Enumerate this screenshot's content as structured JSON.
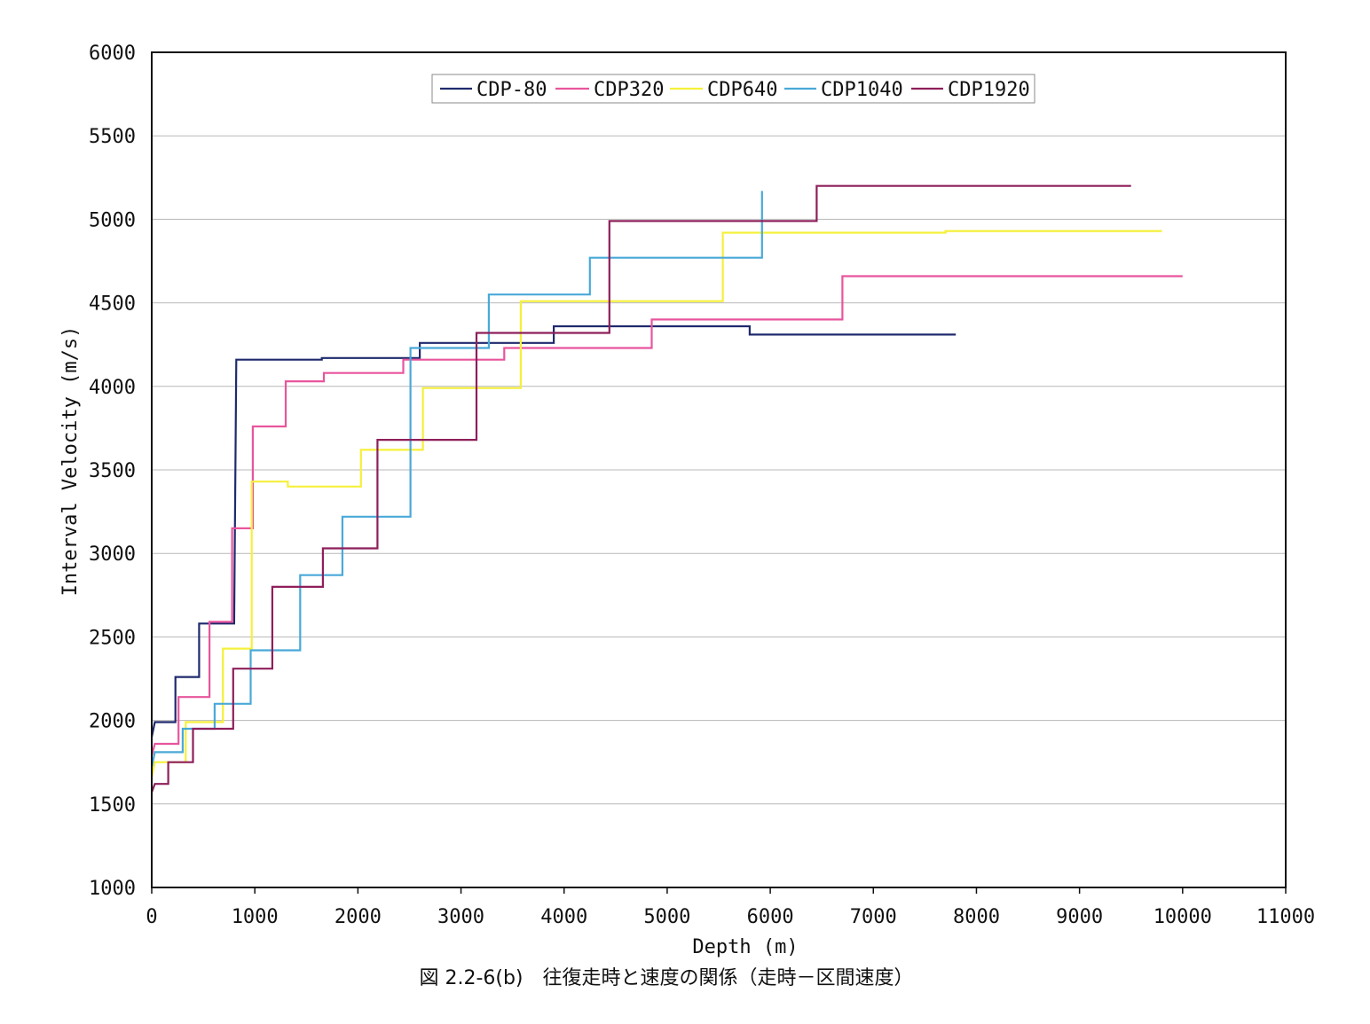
{
  "chart_data": {
    "type": "line",
    "step": true,
    "xlabel": "Depth (m)",
    "ylabel": "Interval Velocity (m/s)",
    "caption": "図 2.2-6(b)　往復走時と速度の関係（走時－区間速度）",
    "xlim": [
      0,
      11000
    ],
    "ylim": [
      1000,
      6000
    ],
    "xticks": [
      0,
      1000,
      2000,
      3000,
      4000,
      5000,
      6000,
      7000,
      8000,
      9000,
      10000,
      11000
    ],
    "yticks": [
      1000,
      1500,
      2000,
      2500,
      3000,
      3500,
      4000,
      4500,
      5000,
      5500,
      6000
    ],
    "grid": "horizontal",
    "legend_position": "top-center",
    "series": [
      {
        "name": "CDP-80",
        "color": "#1f2a6e",
        "points": [
          [
            0,
            1900
          ],
          [
            30,
            1990
          ],
          [
            230,
            1990
          ],
          [
            230,
            2260
          ],
          [
            460,
            2260
          ],
          [
            460,
            2580
          ],
          [
            800,
            2580
          ],
          [
            820,
            4160
          ],
          [
            1650,
            4160
          ],
          [
            1650,
            4170
          ],
          [
            2600,
            4170
          ],
          [
            2600,
            4260
          ],
          [
            3900,
            4260
          ],
          [
            3900,
            4360
          ],
          [
            5800,
            4360
          ],
          [
            5800,
            4310
          ],
          [
            7800,
            4310
          ]
        ]
      },
      {
        "name": "CDP320",
        "color": "#e8559d",
        "points": [
          [
            0,
            1790
          ],
          [
            30,
            1860
          ],
          [
            260,
            1860
          ],
          [
            260,
            2140
          ],
          [
            560,
            2140
          ],
          [
            560,
            2590
          ],
          [
            780,
            2590
          ],
          [
            780,
            3150
          ],
          [
            980,
            3150
          ],
          [
            980,
            3760
          ],
          [
            1300,
            3760
          ],
          [
            1300,
            4030
          ],
          [
            1670,
            4030
          ],
          [
            1670,
            4080
          ],
          [
            2440,
            4080
          ],
          [
            2440,
            4160
          ],
          [
            3420,
            4160
          ],
          [
            3420,
            4230
          ],
          [
            4850,
            4230
          ],
          [
            4850,
            4400
          ],
          [
            6700,
            4400
          ],
          [
            6700,
            4660
          ],
          [
            10000,
            4660
          ]
        ]
      },
      {
        "name": "CDP640",
        "color": "#f5f03a",
        "points": [
          [
            0,
            1660
          ],
          [
            30,
            1750
          ],
          [
            330,
            1750
          ],
          [
            330,
            1990
          ],
          [
            690,
            1990
          ],
          [
            690,
            2430
          ],
          [
            970,
            2430
          ],
          [
            970,
            3430
          ],
          [
            1320,
            3430
          ],
          [
            1320,
            3400
          ],
          [
            2030,
            3400
          ],
          [
            2030,
            3620
          ],
          [
            2630,
            3620
          ],
          [
            2630,
            3990
          ],
          [
            3580,
            3990
          ],
          [
            3580,
            4510
          ],
          [
            5540,
            4510
          ],
          [
            5540,
            4920
          ],
          [
            7700,
            4920
          ],
          [
            7700,
            4930
          ],
          [
            9800,
            4930
          ]
        ]
      },
      {
        "name": "CDP1040",
        "color": "#49a9d8",
        "points": [
          [
            0,
            1720
          ],
          [
            30,
            1810
          ],
          [
            300,
            1810
          ],
          [
            300,
            1950
          ],
          [
            610,
            1950
          ],
          [
            610,
            2100
          ],
          [
            960,
            2100
          ],
          [
            960,
            2420
          ],
          [
            1440,
            2420
          ],
          [
            1440,
            2870
          ],
          [
            1850,
            2870
          ],
          [
            1850,
            3220
          ],
          [
            2510,
            3220
          ],
          [
            2510,
            4230
          ],
          [
            3270,
            4230
          ],
          [
            3270,
            4550
          ],
          [
            4250,
            4550
          ],
          [
            4250,
            4770
          ],
          [
            5920,
            4770
          ],
          [
            5920,
            5170
          ]
        ]
      },
      {
        "name": "CDP1920",
        "color": "#8e1f5a",
        "points": [
          [
            0,
            1570
          ],
          [
            30,
            1620
          ],
          [
            160,
            1620
          ],
          [
            160,
            1750
          ],
          [
            400,
            1750
          ],
          [
            400,
            1950
          ],
          [
            790,
            1950
          ],
          [
            790,
            2310
          ],
          [
            1170,
            2310
          ],
          [
            1170,
            2800
          ],
          [
            1660,
            2800
          ],
          [
            1660,
            3030
          ],
          [
            2190,
            3030
          ],
          [
            2190,
            3680
          ],
          [
            3150,
            3680
          ],
          [
            3150,
            4320
          ],
          [
            4440,
            4320
          ],
          [
            4440,
            4990
          ],
          [
            6450,
            4990
          ],
          [
            6450,
            5200
          ],
          [
            9500,
            5200
          ]
        ]
      }
    ]
  }
}
